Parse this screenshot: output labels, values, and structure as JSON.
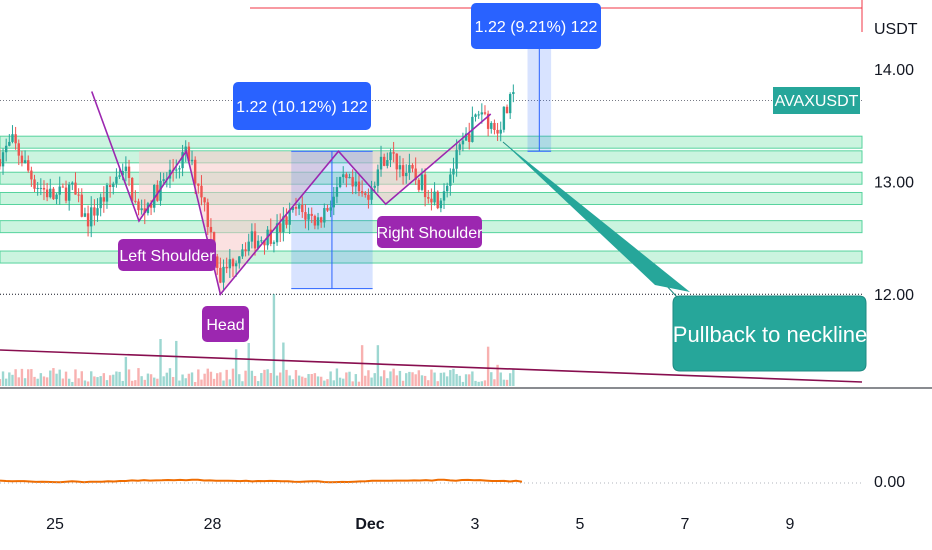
{
  "chart_data": {
    "type": "candlestick",
    "symbol": "AVAXUSDT",
    "currency": "USDT",
    "y_ticks": [
      "14.00",
      "13.00",
      "12.00"
    ],
    "oscillator_tick": "0.00",
    "x_ticks": [
      {
        "label": "25",
        "day": 25,
        "bold": false
      },
      {
        "label": "28",
        "day": 28,
        "bold": false
      },
      {
        "label": "Dec",
        "day": 31,
        "bold": true
      },
      {
        "label": "3",
        "day": 33,
        "bold": false
      },
      {
        "label": "5",
        "day": 35,
        "bold": false
      },
      {
        "label": "7",
        "day": 37,
        "bold": false
      },
      {
        "label": "9",
        "day": 39,
        "bold": false
      }
    ],
    "ylim": [
      11.2,
      14.4
    ],
    "current_price": 13.72,
    "pattern": "inverse head and shoulders",
    "labels": {
      "left_shoulder": "Left Shoulder",
      "head": "Head",
      "right_shoulder": "Right Shoulder",
      "pullback": "Pullback to neckline"
    },
    "measurements": [
      {
        "text": "1.22 (10.12%) 122",
        "day_from": 29.5,
        "day_to": 31.05,
        "price_from": 12.05,
        "price_to": 13.27
      },
      {
        "text": "1.22 (9.21%) 122",
        "day_from": 34.0,
        "day_to": 34.45,
        "price_from": 13.27,
        "price_to": 14.49
      }
    ],
    "pattern_points": [
      {
        "day": 25.7,
        "price": 13.8
      },
      {
        "day": 26.6,
        "price": 12.65
      },
      {
        "day": 27.5,
        "price": 13.27
      },
      {
        "day": 28.15,
        "price": 12.0
      },
      {
        "day": 30.4,
        "price": 13.27
      },
      {
        "day": 31.3,
        "price": 12.8
      },
      {
        "day": 32.75,
        "price": 13.38
      }
    ],
    "support_bands": [
      13.35,
      13.22,
      13.03,
      12.85,
      12.6,
      12.33
    ],
    "colors": {
      "up": "#26a69a",
      "down": "#ef5350",
      "zone": "#b9f0d4",
      "measure": "#2962ff",
      "label_purple": "#9c27b0",
      "callout": "#26a69a",
      "trendline": "#880e4f",
      "oscillator": "#ef6c00",
      "alert": "#f23645"
    }
  }
}
